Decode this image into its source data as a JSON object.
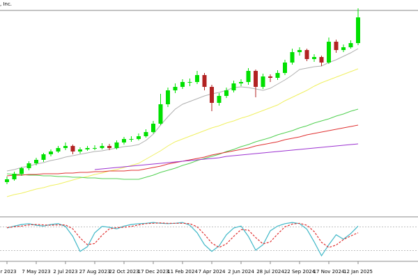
{
  "chart_data": [
    {
      "type": "candlestick",
      "title": ", Inc.",
      "categories": [
        "ar 2023",
        null,
        null,
        null,
        "7 May 2023",
        null,
        null,
        null,
        "2 Jul 2023",
        null,
        null,
        null,
        "27 Aug 2023",
        null,
        null,
        null,
        "22 Oct 2023",
        null,
        null,
        null,
        "17 Dec 2023",
        null,
        null,
        null,
        "11 Feb 2024",
        null,
        null,
        null,
        "7 Apr 2024",
        null,
        null,
        null,
        "2 Jun 2024",
        null,
        null,
        null,
        "28 Jul 2024",
        null,
        null,
        null,
        "22 Sep 2024",
        null,
        null,
        null,
        "17 Nov 2024",
        null,
        null,
        null,
        "12 Jan 2025"
      ],
      "open": [
        48,
        52,
        60,
        68,
        75,
        80,
        88,
        92,
        97,
        100,
        92,
        95,
        97,
        97,
        100,
        97,
        105,
        110,
        110,
        114,
        120,
        132,
        160,
        180,
        185,
        192,
        192,
        202,
        185,
        162,
        172,
        180,
        190,
        192,
        208,
        185,
        200,
        198,
        205,
        220,
        235,
        238,
        225,
        228,
        220,
        250,
        238,
        242,
        248
      ],
      "high": [
        56,
        63,
        70,
        78,
        83,
        90,
        95,
        100,
        105,
        102,
        98,
        100,
        101,
        104,
        103,
        108,
        113,
        114,
        118,
        124,
        136,
        175,
        184,
        190,
        196,
        197,
        208,
        205,
        188,
        176,
        184,
        194,
        196,
        212,
        210,
        204,
        203,
        209,
        224,
        240,
        242,
        240,
        232,
        230,
        256,
        253,
        246,
        252,
        298
      ],
      "low": [
        45,
        50,
        57,
        65,
        72,
        77,
        85,
        90,
        94,
        88,
        89,
        93,
        94,
        95,
        94,
        95,
        102,
        106,
        108,
        112,
        118,
        130,
        156,
        176,
        182,
        186,
        189,
        180,
        150,
        158,
        169,
        177,
        186,
        188,
        170,
        182,
        192,
        195,
        202,
        217,
        230,
        222,
        221,
        215,
        218,
        234,
        235,
        240,
        245
      ],
      "close": [
        52,
        60,
        68,
        75,
        80,
        88,
        92,
        97,
        100,
        92,
        95,
        97,
        97,
        100,
        97,
        105,
        110,
        110,
        114,
        120,
        132,
        160,
        180,
        185,
        192,
        192,
        202,
        185,
        162,
        172,
        180,
        190,
        192,
        208,
        185,
        200,
        198,
        205,
        220,
        235,
        238,
        225,
        228,
        220,
        250,
        238,
        242,
        248,
        285
      ],
      "up_color": "#00e000",
      "down_color": "#b22222",
      "ylim": [
        0,
        300
      ],
      "lines": [
        {
          "color": "#b0b0b0",
          "values": [
            64,
            66,
            69,
            71,
            74,
            76,
            79,
            81,
            84,
            86,
            88,
            90,
            92,
            93,
            95,
            97,
            99,
            100,
            102,
            108,
            117,
            130,
            142,
            153,
            160,
            164,
            168,
            172,
            175,
            177,
            180,
            184,
            185,
            184,
            182,
            180,
            183,
            189,
            195,
            202,
            210,
            212,
            214,
            215,
            220,
            224,
            229,
            234,
            240
          ]
        },
        {
          "color": "#f0f060",
          "values": [
            27,
            30,
            32,
            35,
            38,
            40,
            43,
            45,
            48,
            51,
            54,
            56,
            59,
            61,
            64,
            66,
            69,
            72,
            75,
            81,
            87,
            93,
            100,
            106,
            110,
            114,
            118,
            122,
            126,
            129,
            133,
            136,
            140,
            143,
            147,
            151,
            155,
            159,
            165,
            170,
            175,
            180,
            186,
            191,
            195,
            199,
            203,
            207,
            211
          ]
        },
        {
          "color": "#50d050",
          "values": [
            60,
            59,
            59,
            58,
            58,
            57,
            57,
            56,
            56,
            55,
            55,
            54,
            54,
            53,
            53,
            53,
            52,
            52,
            52,
            55,
            58,
            62,
            65,
            68,
            72,
            75,
            79,
            82,
            85,
            88,
            92,
            95,
            99,
            102,
            106,
            109,
            112,
            116,
            119,
            122,
            126,
            129,
            133,
            136,
            139,
            143,
            146,
            150,
            153
          ]
        },
        {
          "color": "#e03030",
          "values": [
            57,
            58,
            58,
            59,
            59,
            60,
            60,
            60,
            61,
            61,
            62,
            62,
            63,
            63,
            64,
            64,
            64,
            65,
            65,
            67,
            69,
            71,
            74,
            76,
            78,
            80,
            82,
            84,
            87,
            89,
            91,
            93,
            95,
            97,
            100,
            102,
            104,
            106,
            109,
            111,
            113,
            116,
            118,
            120,
            122,
            124,
            126,
            128,
            130
          ]
        },
        {
          "color": "#9b30d0",
          "values": [
            null,
            null,
            null,
            null,
            null,
            null,
            null,
            null,
            null,
            null,
            null,
            null,
            66,
            67,
            68,
            69,
            70,
            71,
            72,
            73,
            74,
            75,
            76,
            77,
            78,
            79,
            80,
            81,
            82,
            83,
            85,
            86,
            87,
            88,
            89,
            90,
            91,
            92,
            93,
            94,
            95,
            96,
            97,
            98,
            99,
            100,
            101,
            102,
            103
          ]
        }
      ]
    },
    {
      "type": "line",
      "ylim": [
        0,
        100
      ],
      "levels": [
        20,
        80
      ],
      "series": [
        {
          "color": "#40b8c8",
          "dash": false,
          "values": [
            77,
            82,
            86,
            88,
            84,
            82,
            86,
            88,
            81,
            56,
            18,
            30,
            65,
            81,
            79,
            75,
            82,
            86,
            88,
            89,
            91,
            89,
            88,
            89,
            91,
            84,
            65,
            35,
            18,
            32,
            60,
            77,
            82,
            56,
            21,
            35,
            70,
            82,
            88,
            91,
            88,
            74,
            42,
            7,
            35,
            60,
            49,
            63,
            82
          ]
        },
        {
          "color": "#e03030",
          "dash": true,
          "values": [
            78,
            80,
            82,
            85,
            86,
            85,
            84,
            85,
            85,
            75,
            52,
            35,
            38,
            59,
            75,
            78,
            79,
            81,
            85,
            88,
            89,
            90,
            89,
            89,
            89,
            88,
            80,
            61,
            39,
            28,
            37,
            56,
            73,
            72,
            53,
            37,
            42,
            62,
            80,
            87,
            89,
            84,
            68,
            41,
            28,
            34,
            48,
            57,
            65
          ]
        }
      ]
    }
  ]
}
